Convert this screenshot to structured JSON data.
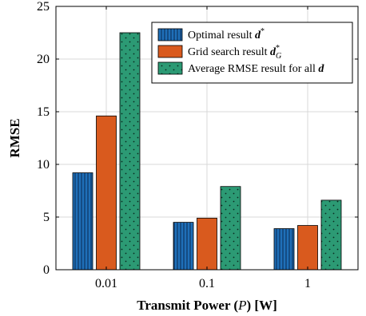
{
  "chart_data": {
    "type": "bar",
    "categories": [
      "0.01",
      "0.1",
      "1"
    ],
    "series": [
      {
        "name": "Optimal result d*",
        "name_parts": {
          "prefix": "Optimal result ",
          "var": "d",
          "sup": "*",
          "sub": ""
        },
        "values": [
          9.2,
          4.5,
          3.9
        ],
        "color": "#1f6fb8",
        "pattern": "vertical-lines"
      },
      {
        "name": "Grid search result d*G",
        "name_parts": {
          "prefix": "Grid search result ",
          "var": "d",
          "sup": "*",
          "sub": "G"
        },
        "values": [
          14.6,
          4.9,
          4.2
        ],
        "color": "#d95a1e",
        "pattern": "solid"
      },
      {
        "name": "Average RMSE result for all d",
        "name_parts": {
          "prefix": "Average RMSE result for all ",
          "var": "d",
          "sup": "",
          "sub": ""
        },
        "values": [
          22.5,
          7.9,
          6.6
        ],
        "color": "#2c9a74",
        "pattern": "dots"
      }
    ],
    "xlabel": {
      "prefix": "Transmit Power (",
      "var": "P",
      "suffix": ") [W]"
    },
    "ylabel": "RMSE",
    "ylim": [
      0,
      25
    ],
    "yticks": [
      0,
      5,
      10,
      15,
      20,
      25
    ],
    "grid": true,
    "legend_position": "top-right"
  }
}
